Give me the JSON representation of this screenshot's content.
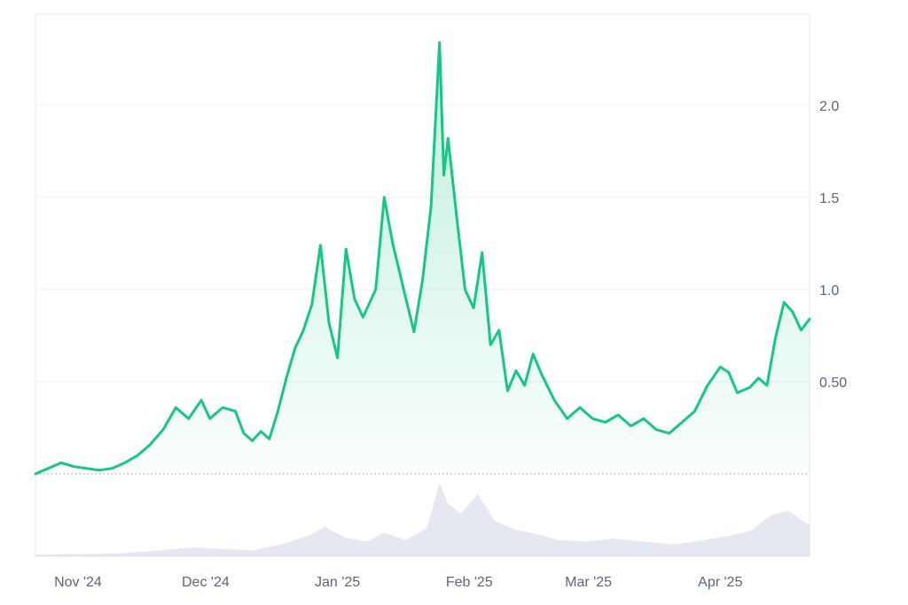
{
  "colors": {
    "line": "#16c784",
    "area_top": "#16c784",
    "grid": "#eff2f5",
    "axis_text": "#58667e",
    "baseline": "#a6b0c3",
    "volume": "#cfd6e4",
    "frame": "#e6e9ee"
  },
  "chart_data": {
    "type": "line",
    "title": "",
    "xlabel": "",
    "ylabel": "",
    "x_range": [
      "2024-10-22",
      "2025-04-22"
    ],
    "ylim": [
      0,
      2.5
    ],
    "y_axis_position": "right",
    "baseline_value": 0.0,
    "grid": true,
    "yticks": [
      {
        "value": 0.5,
        "label": "0.50"
      },
      {
        "value": 1.0,
        "label": "1.0"
      },
      {
        "value": 1.5,
        "label": "1.5"
      },
      {
        "value": 2.0,
        "label": "2.0"
      }
    ],
    "xticks": [
      {
        "date": "2024-11-01",
        "label": "Nov '24"
      },
      {
        "date": "2024-12-01",
        "label": "Dec '24"
      },
      {
        "date": "2025-01-01",
        "label": "Jan '25"
      },
      {
        "date": "2025-02-01",
        "label": "Feb '25"
      },
      {
        "date": "2025-03-01",
        "label": "Mar '25"
      },
      {
        "date": "2025-04-01",
        "label": "Apr '25"
      }
    ],
    "series": [
      {
        "points": [
          [
            "2024-10-22",
            0.0
          ],
          [
            "2024-10-25",
            0.03
          ],
          [
            "2024-10-28",
            0.06
          ],
          [
            "2024-10-31",
            0.04
          ],
          [
            "2024-11-03",
            0.03
          ],
          [
            "2024-11-06",
            0.02
          ],
          [
            "2024-11-09",
            0.03
          ],
          [
            "2024-11-12",
            0.06
          ],
          [
            "2024-11-15",
            0.1
          ],
          [
            "2024-11-18",
            0.16
          ],
          [
            "2024-11-21",
            0.24
          ],
          [
            "2024-11-24",
            0.36
          ],
          [
            "2024-11-27",
            0.3
          ],
          [
            "2024-11-30",
            0.4
          ],
          [
            "2024-12-02",
            0.3
          ],
          [
            "2024-12-05",
            0.36
          ],
          [
            "2024-12-08",
            0.34
          ],
          [
            "2024-12-10",
            0.22
          ],
          [
            "2024-12-12",
            0.18
          ],
          [
            "2024-12-14",
            0.23
          ],
          [
            "2024-12-16",
            0.19
          ],
          [
            "2024-12-18",
            0.34
          ],
          [
            "2024-12-20",
            0.52
          ],
          [
            "2024-12-22",
            0.68
          ],
          [
            "2024-12-24",
            0.78
          ],
          [
            "2024-12-26",
            0.92
          ],
          [
            "2024-12-28",
            1.24
          ],
          [
            "2024-12-30",
            0.82
          ],
          [
            "2025-01-01",
            0.63
          ],
          [
            "2025-01-03",
            1.22
          ],
          [
            "2025-01-05",
            0.95
          ],
          [
            "2025-01-07",
            0.85
          ],
          [
            "2025-01-10",
            1.0
          ],
          [
            "2025-01-12",
            1.5
          ],
          [
            "2025-01-14",
            1.25
          ],
          [
            "2025-01-17",
            0.96
          ],
          [
            "2025-01-19",
            0.77
          ],
          [
            "2025-01-21",
            1.05
          ],
          [
            "2025-01-23",
            1.45
          ],
          [
            "2025-01-25",
            2.34
          ],
          [
            "2025-01-26",
            1.62
          ],
          [
            "2025-01-27",
            1.82
          ],
          [
            "2025-01-29",
            1.4
          ],
          [
            "2025-01-31",
            1.0
          ],
          [
            "2025-02-02",
            0.9
          ],
          [
            "2025-02-04",
            1.2
          ],
          [
            "2025-02-06",
            0.7
          ],
          [
            "2025-02-08",
            0.78
          ],
          [
            "2025-02-10",
            0.45
          ],
          [
            "2025-02-12",
            0.56
          ],
          [
            "2025-02-14",
            0.48
          ],
          [
            "2025-02-16",
            0.65
          ],
          [
            "2025-02-18",
            0.54
          ],
          [
            "2025-02-21",
            0.4
          ],
          [
            "2025-02-24",
            0.3
          ],
          [
            "2025-02-27",
            0.36
          ],
          [
            "2025-03-02",
            0.3
          ],
          [
            "2025-03-05",
            0.28
          ],
          [
            "2025-03-08",
            0.32
          ],
          [
            "2025-03-11",
            0.26
          ],
          [
            "2025-03-14",
            0.3
          ],
          [
            "2025-03-17",
            0.24
          ],
          [
            "2025-03-20",
            0.22
          ],
          [
            "2025-03-23",
            0.28
          ],
          [
            "2025-03-26",
            0.34
          ],
          [
            "2025-03-29",
            0.48
          ],
          [
            "2025-04-01",
            0.58
          ],
          [
            "2025-04-03",
            0.55
          ],
          [
            "2025-04-05",
            0.44
          ],
          [
            "2025-04-08",
            0.47
          ],
          [
            "2025-04-10",
            0.52
          ],
          [
            "2025-04-12",
            0.48
          ],
          [
            "2025-04-14",
            0.74
          ],
          [
            "2025-04-16",
            0.93
          ],
          [
            "2025-04-18",
            0.88
          ],
          [
            "2025-04-20",
            0.78
          ],
          [
            "2025-04-22",
            0.84
          ]
        ]
      }
    ],
    "volume": [
      [
        "2024-10-22",
        0.02
      ],
      [
        "2024-11-01",
        0.03
      ],
      [
        "2024-11-10",
        0.04
      ],
      [
        "2024-11-20",
        0.08
      ],
      [
        "2024-11-28",
        0.12
      ],
      [
        "2024-12-05",
        0.1
      ],
      [
        "2024-12-12",
        0.08
      ],
      [
        "2024-12-20",
        0.18
      ],
      [
        "2024-12-26",
        0.3
      ],
      [
        "2024-12-29",
        0.4
      ],
      [
        "2025-01-03",
        0.25
      ],
      [
        "2025-01-08",
        0.2
      ],
      [
        "2025-01-12",
        0.32
      ],
      [
        "2025-01-17",
        0.22
      ],
      [
        "2025-01-22",
        0.38
      ],
      [
        "2025-01-25",
        1.0
      ],
      [
        "2025-01-27",
        0.72
      ],
      [
        "2025-01-30",
        0.58
      ],
      [
        "2025-02-03",
        0.85
      ],
      [
        "2025-02-07",
        0.48
      ],
      [
        "2025-02-12",
        0.36
      ],
      [
        "2025-02-17",
        0.3
      ],
      [
        "2025-02-22",
        0.22
      ],
      [
        "2025-02-28",
        0.2
      ],
      [
        "2025-03-07",
        0.24
      ],
      [
        "2025-03-14",
        0.2
      ],
      [
        "2025-03-21",
        0.16
      ],
      [
        "2025-03-28",
        0.22
      ],
      [
        "2025-04-03",
        0.28
      ],
      [
        "2025-04-08",
        0.34
      ],
      [
        "2025-04-13",
        0.56
      ],
      [
        "2025-04-17",
        0.62
      ],
      [
        "2025-04-22",
        0.42
      ]
    ]
  }
}
